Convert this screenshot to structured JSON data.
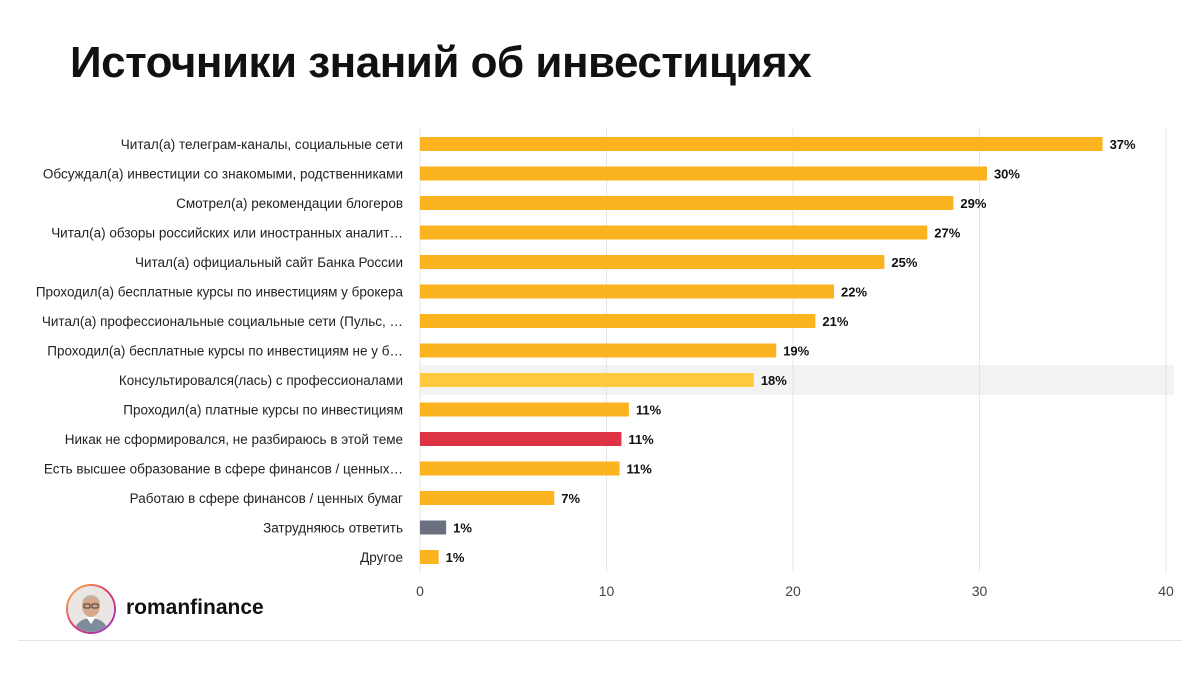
{
  "title": "Источники знаний об инвестициях",
  "brand": "romanfinance",
  "colors": {
    "bar_default": "#FBB31F",
    "bar_highlight": "#FFCA3D",
    "bar_negative": "#DE3342",
    "bar_neutral": "#6B7080",
    "highlight_band": "#F3F3F3",
    "grid": "#E6E6E6"
  },
  "chart_data": {
    "type": "bar",
    "orientation": "horizontal",
    "categories": [
      "Читал(а) телеграм-каналы, социальные сети",
      "Обсуждал(а) инвестиции со знакомыми, родственниками",
      "Смотрел(а) рекомендации блогеров",
      "Читал(а) обзоры российских или иностранных аналит…",
      "Читал(а) официальный сайт Банка России",
      "Проходил(а) бесплатные курсы по инвестициям у брокера",
      "Читал(а) профессиональные социальные сети (Пульс, …",
      "Проходил(а) бесплатные курсы по инвестициям не у б…",
      "Консультировался(лась) с профессионалами",
      "Проходил(а) платные курсы по инвестициям",
      "Никак не сформировался, не разбираюсь в этой теме",
      "Есть высшее образование в сфере финансов / ценных…",
      "Работаю в сфере финансов / ценных бумаг",
      "Затрудняюсь ответить",
      "Другое"
    ],
    "values": [
      36.6,
      30.4,
      28.6,
      27.2,
      24.9,
      22.2,
      21.2,
      19.1,
      17.9,
      11.2,
      10.8,
      10.7,
      7.2,
      1.4,
      1.0
    ],
    "value_labels": [
      "37%",
      "30%",
      "29%",
      "27%",
      "25%",
      "22%",
      "21%",
      "19%",
      "18%",
      "11%",
      "11%",
      "11%",
      "7%",
      "1%",
      "1%"
    ],
    "bar_colors": [
      "#FBB31F",
      "#FBB31F",
      "#FBB31F",
      "#FBB31F",
      "#FBB31F",
      "#FBB31F",
      "#FBB31F",
      "#FBB31F",
      "#FFCA3D",
      "#FBB31F",
      "#DE3342",
      "#FBB31F",
      "#FBB31F",
      "#6B7080",
      "#FBB31F"
    ],
    "highlighted_category": "Консультировался(лась) с профессионалами",
    "xlim": [
      0,
      40
    ],
    "xticks": [
      0,
      10,
      20,
      30,
      40
    ],
    "grid": true
  }
}
